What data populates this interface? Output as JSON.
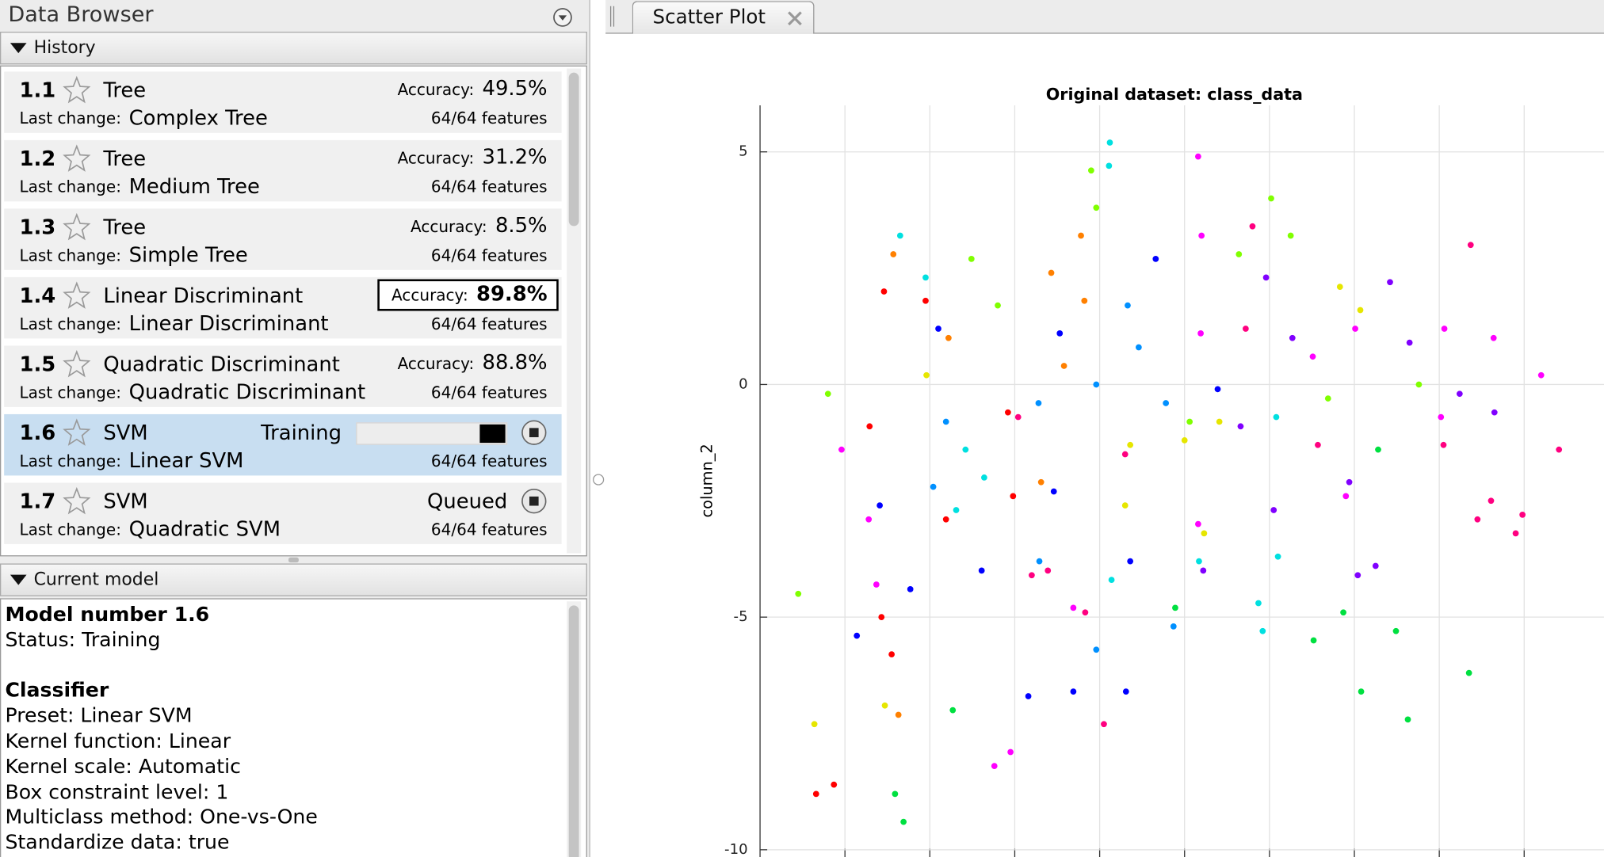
{
  "panel_title": "Data Browser",
  "history": {
    "header": "History",
    "accuracy_label": "Accuracy:",
    "last_change_label": "Last change:",
    "items": [
      {
        "number": "1.1",
        "type": "Tree",
        "accuracy": "49.5%",
        "last_change": "Complex Tree",
        "features": "64/64 features"
      },
      {
        "number": "1.2",
        "type": "Tree",
        "accuracy": "31.2%",
        "last_change": "Medium Tree",
        "features": "64/64 features"
      },
      {
        "number": "1.3",
        "type": "Tree",
        "accuracy": "8.5%",
        "last_change": "Simple Tree",
        "features": "64/64 features"
      },
      {
        "number": "1.4",
        "type": "Linear Discriminant",
        "accuracy": "89.8%",
        "highlight": true,
        "last_change": "Linear Discriminant",
        "features": "64/64 features"
      },
      {
        "number": "1.5",
        "type": "Quadratic Discriminant",
        "accuracy": "88.8%",
        "last_change": "Quadratic Discriminant",
        "features": "64/64 features"
      },
      {
        "number": "1.6",
        "type": "SVM",
        "status": "Training",
        "progress_bar": true,
        "stop_button": true,
        "selected": true,
        "last_change": "Linear SVM",
        "features": "64/64 features"
      },
      {
        "number": "1.7",
        "type": "SVM",
        "status": "Queued",
        "stop_button": true,
        "last_change": "Quadratic SVM",
        "features": "64/64 features"
      }
    ]
  },
  "current_model": {
    "header": "Current model",
    "title": "Model number 1.6",
    "status": "Status: Training",
    "section": "Classifier",
    "lines": [
      "Preset: Linear SVM",
      "Kernel function: Linear",
      "Kernel scale: Automatic",
      "Box constraint level: 1",
      "Multiclass method: One-vs-One",
      "Standardize data: true"
    ]
  },
  "tab": "Scatter Plot",
  "chart_data": {
    "type": "scatter",
    "title": "Original dataset: class_data",
    "y_label": "column_2",
    "xlim": [
      0,
      9.94
    ],
    "xticks": [
      1,
      2,
      3,
      4,
      5,
      6,
      7,
      8,
      9
    ],
    "ylim": [
      -10.2,
      6
    ],
    "yticks": [
      -10,
      -5,
      0,
      5
    ],
    "grid": true,
    "series": [
      {
        "color": "#ff0000",
        "x": [
          0.66,
          0.87,
          1.46,
          1.29,
          1.43,
          1.55,
          1.95,
          2.98,
          2.19,
          2.92
        ],
        "y": [
          -8.8,
          -8.6,
          2.0,
          -0.9,
          -5.0,
          -5.8,
          1.8,
          -2.4,
          -2.9,
          -0.6
        ]
      },
      {
        "color": "#ff8000",
        "x": [
          1.57,
          3.78,
          3.43,
          3.82,
          2.22,
          3.31,
          1.63,
          3.58
        ],
        "y": [
          2.8,
          3.2,
          2.4,
          1.8,
          1.0,
          -2.1,
          -7.1,
          0.4
        ]
      },
      {
        "color": "#e6e600",
        "x": [
          0.64,
          1.96,
          5.0,
          5.23,
          5.41,
          4.36,
          1.47,
          6.83,
          7.07,
          4.3
        ],
        "y": [
          -7.3,
          0.2,
          -1.2,
          -3.2,
          -0.8,
          -1.3,
          -6.9,
          2.1,
          1.6,
          -2.6
        ]
      },
      {
        "color": "#80ff00",
        "x": [
          3.9,
          3.96,
          2.49,
          2.8,
          6.02,
          6.25,
          5.64,
          0.8,
          0.45,
          5.06,
          6.69,
          7.76
        ],
        "y": [
          4.6,
          3.8,
          2.7,
          1.7,
          4.0,
          3.2,
          2.8,
          -0.2,
          -4.5,
          -0.8,
          -0.3,
          0.0
        ]
      },
      {
        "color": "#00e040",
        "x": [
          1.59,
          1.69,
          6.52,
          6.87,
          7.08,
          7.63,
          8.35,
          7.49,
          7.28,
          4.89,
          2.27
        ],
        "y": [
          -8.8,
          -9.4,
          -5.5,
          -4.9,
          -6.6,
          -7.2,
          -6.2,
          -5.3,
          -1.4,
          -4.8,
          -7.0
        ]
      },
      {
        "color": "#00e0e0",
        "x": [
          4.12,
          4.11,
          1.65,
          1.95,
          2.42,
          2.64,
          2.31,
          6.08,
          5.87,
          5.92,
          6.1,
          5.17,
          4.14
        ],
        "y": [
          5.2,
          4.7,
          3.2,
          2.3,
          -1.4,
          -2.0,
          -2.7,
          -0.7,
          -4.7,
          -5.3,
          -3.7,
          -3.8,
          -4.2
        ]
      },
      {
        "color": "#0090ff",
        "x": [
          3.96,
          3.29,
          4.87,
          3.96,
          4.46,
          3.28,
          2.19,
          2.04,
          4.33,
          4.78
        ],
        "y": [
          -5.7,
          -3.8,
          -5.2,
          0.0,
          0.8,
          -0.4,
          -0.8,
          -2.2,
          1.7,
          -0.4
        ]
      },
      {
        "color": "#0000ff",
        "x": [
          4.66,
          2.1,
          1.41,
          1.14,
          1.77,
          2.61,
          3.16,
          3.69,
          4.31,
          4.36,
          5.39,
          3.46,
          3.53
        ],
        "y": [
          2.7,
          1.2,
          -2.6,
          -5.4,
          -4.4,
          -4.0,
          -6.7,
          -6.6,
          -6.6,
          -3.8,
          -0.1,
          -2.3,
          1.1
        ]
      },
      {
        "color": "#8000ff",
        "x": [
          5.96,
          7.42,
          7.65,
          8.24,
          8.65,
          6.27,
          5.66,
          6.05,
          6.94,
          7.04,
          7.25,
          5.22
        ],
        "y": [
          2.3,
          2.2,
          0.9,
          -0.2,
          -0.6,
          1.0,
          -0.9,
          -2.7,
          -2.1,
          -4.1,
          -3.9,
          -4.0
        ]
      },
      {
        "color": "#ff00ff",
        "x": [
          5.16,
          5.2,
          5.19,
          6.51,
          7.01,
          8.06,
          8.64,
          9.2,
          8.02,
          0.96,
          1.28,
          1.37,
          2.76,
          2.95,
          3.69,
          5.16,
          6.9
        ],
        "y": [
          4.9,
          3.2,
          1.1,
          0.6,
          1.2,
          1.2,
          1.0,
          0.2,
          -0.7,
          -1.4,
          -2.9,
          -4.3,
          -8.2,
          -7.9,
          -4.8,
          -3.0,
          -2.4
        ]
      },
      {
        "color": "#ff0080",
        "x": [
          5.8,
          8.37,
          9.41,
          5.72,
          6.57,
          8.9,
          8.98,
          8.61,
          8.45,
          8.05,
          4.05,
          4.3,
          3.39,
          3.83,
          3.04,
          3.2
        ],
        "y": [
          3.4,
          3.0,
          -1.4,
          1.2,
          -1.3,
          -3.2,
          -2.8,
          -2.5,
          -2.9,
          -1.3,
          -7.3,
          -1.5,
          -4.0,
          -4.9,
          -0.7,
          -4.1
        ]
      }
    ]
  }
}
